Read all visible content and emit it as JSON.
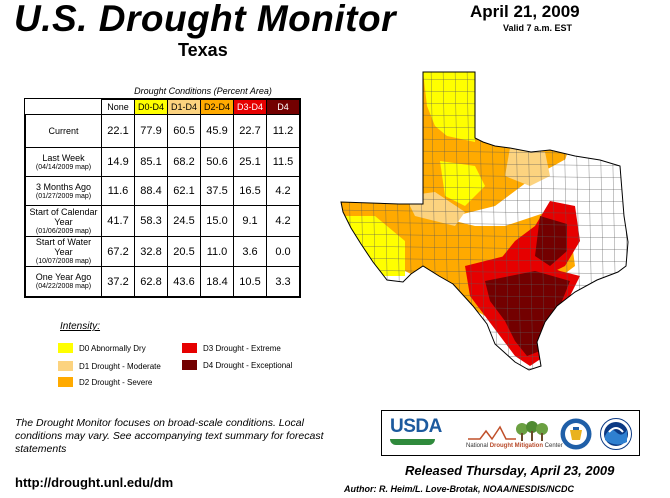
{
  "header": {
    "title": "U.S. Drought Monitor",
    "region": "Texas",
    "date": "April 21, 2009",
    "valid": "Valid 7 a.m. EST"
  },
  "conditions": {
    "caption": "Drought Conditions (Percent Area)",
    "columns": [
      {
        "label": "None",
        "color": "#ffffff"
      },
      {
        "label": "D0-D4",
        "color": "#ffff00"
      },
      {
        "label": "D1-D4",
        "color": "#fcd37f"
      },
      {
        "label": "D2-D4",
        "color": "#ffaa00"
      },
      {
        "label": "D3-D4",
        "color": "#e60000"
      },
      {
        "label": "D4",
        "color": "#730000"
      }
    ],
    "rows": [
      {
        "label": "Current",
        "sub": "",
        "values": [
          "22.1",
          "77.9",
          "60.5",
          "45.9",
          "22.7",
          "11.2"
        ]
      },
      {
        "label": "Last Week",
        "sub": "(04/14/2009 map)",
        "values": [
          "14.9",
          "85.1",
          "68.2",
          "50.6",
          "25.1",
          "11.5"
        ]
      },
      {
        "label": "3 Months Ago",
        "sub": "(01/27/2009 map)",
        "values": [
          "11.6",
          "88.4",
          "62.1",
          "37.5",
          "16.5",
          "4.2"
        ]
      },
      {
        "label": "Start of Calendar Year",
        "sub": "(01/06/2009 map)",
        "values": [
          "41.7",
          "58.3",
          "24.5",
          "15.0",
          "9.1",
          "4.2"
        ]
      },
      {
        "label": "Start of Water Year",
        "sub": "(10/07/2008 map)",
        "values": [
          "67.2",
          "32.8",
          "20.5",
          "11.0",
          "3.6",
          "0.0"
        ]
      },
      {
        "label": "One Year Ago",
        "sub": "(04/22/2008 map)",
        "values": [
          "37.2",
          "62.8",
          "43.6",
          "18.4",
          "10.5",
          "3.3"
        ]
      }
    ]
  },
  "legend": {
    "title": "Intensity:",
    "items": [
      {
        "label": "D0 Abnormally Dry",
        "color": "#ffff00"
      },
      {
        "label": "D1 Drought - Moderate",
        "color": "#fcd37f"
      },
      {
        "label": "D2 Drought - Severe",
        "color": "#ffaa00"
      },
      {
        "label": "D3 Drought - Extreme",
        "color": "#e60000"
      },
      {
        "label": "D4 Drought - Exceptional",
        "color": "#730000"
      }
    ]
  },
  "map": {
    "region": "Texas",
    "layers": [
      "D0",
      "D1",
      "D2",
      "D3",
      "D4"
    ],
    "colors": {
      "None": "#ffffff",
      "D0": "#ffff00",
      "D1": "#fcd37f",
      "D2": "#ffaa00",
      "D3": "#e60000",
      "D4": "#730000"
    }
  },
  "footer": {
    "note": "The Drought Monitor focuses on broad-scale conditions. Local conditions may vary. See accompanying text summary for forecast statements",
    "url": "http://drought.unl.edu/dm",
    "released": "Released Thursday, April 23, 2009",
    "author": "Author: R. Heim/L. Love-Brotak, NOAA/NESDIS/NCDC"
  },
  "logos": {
    "usda": "USDA",
    "ndmc_prefix": "National ",
    "ndmc_name": "Drought Mitigation",
    "ndmc_suffix": " Center"
  }
}
